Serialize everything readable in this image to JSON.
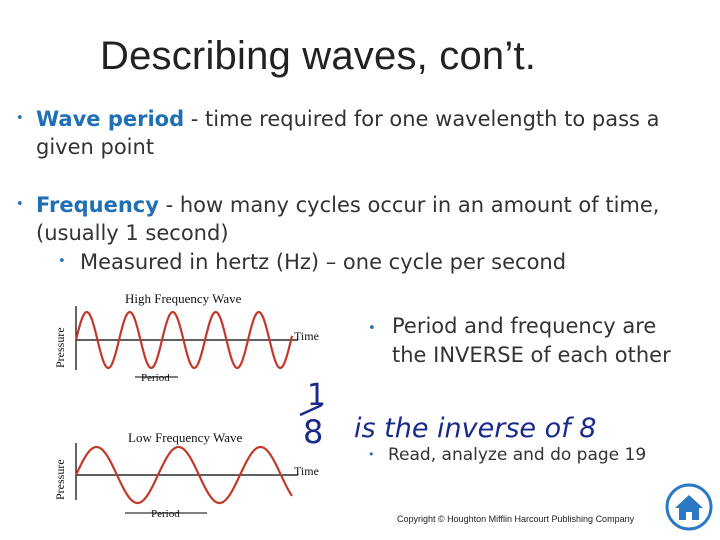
{
  "title": "Describing waves, con’t.",
  "bullets": [
    {
      "term": "Wave period",
      "text": " - time required for one wavelength to pass a given point"
    },
    {
      "term": "Frequency",
      "text": " - how many cycles occur in an amount of time, (usually 1 second)"
    }
  ],
  "sub_bullet": "Measured in hertz (Hz) – one cycle per second",
  "diagram": {
    "high_title": "High Frequency Wave",
    "low_title": "Low Frequency Wave",
    "y_axis": "Pressure",
    "x_axis": "Time",
    "period_label": "Period"
  },
  "side_note": "Period and frequency are the INVERSE of each other",
  "handwriting": {
    "numerator": "1",
    "denominator": "8",
    "phrase": "is the inverse of 8"
  },
  "assignment": "Read, analyze and do page 19",
  "copyright": "Copyright © Houghton Mifflin Harcourt Publishing Company",
  "colors": {
    "accent": "#1f6fb5",
    "ink": "#1a2a8a",
    "home_icon": "#2b78c4"
  },
  "icons": {
    "home": "home-icon"
  }
}
